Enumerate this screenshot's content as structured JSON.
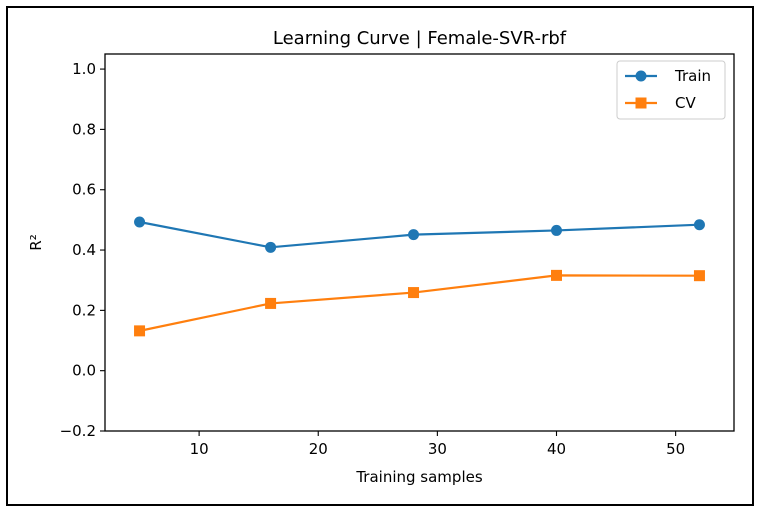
{
  "chart_data": {
    "type": "line",
    "title": "Learning Curve | Female-SVR-rbf",
    "xlabel": "Training samples",
    "ylabel": "R²",
    "x": [
      5,
      16,
      28,
      40,
      52
    ],
    "xlim": [
      2.1,
      54.9
    ],
    "ylim": [
      -0.2,
      1.05
    ],
    "xticks": [
      10,
      20,
      30,
      40,
      50
    ],
    "xtick_labels": [
      "10",
      "20",
      "30",
      "40",
      "50"
    ],
    "yticks": [
      -0.2,
      0.0,
      0.2,
      0.4,
      0.6,
      0.8,
      1.0
    ],
    "ytick_labels": [
      "−0.2",
      "0.0",
      "0.2",
      "0.4",
      "0.6",
      "0.8",
      "1.0"
    ],
    "grid": false,
    "legend_position": "top-right",
    "series": [
      {
        "name": "Train",
        "values": [
          0.493,
          0.409,
          0.451,
          0.465,
          0.484
        ],
        "color": "#1f77b4",
        "marker": "circle"
      },
      {
        "name": "CV",
        "values": [
          0.132,
          0.223,
          0.259,
          0.316,
          0.315
        ],
        "color": "#ff7f0e",
        "marker": "square"
      }
    ]
  }
}
